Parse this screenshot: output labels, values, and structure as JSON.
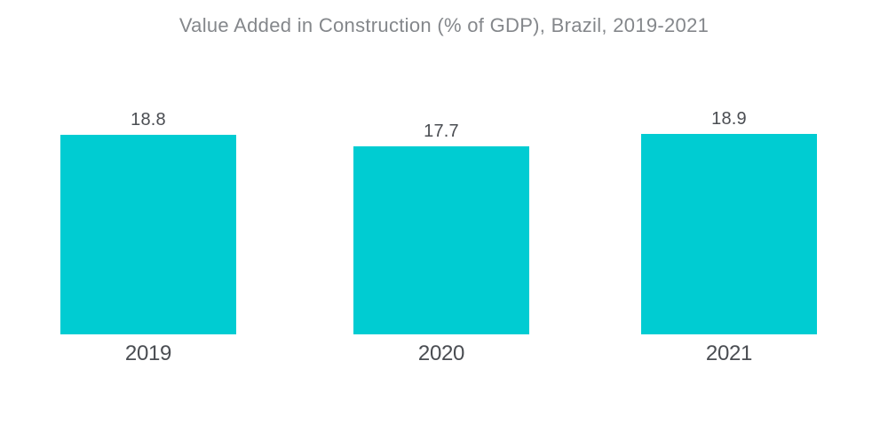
{
  "chart_data": {
    "type": "bar",
    "title": "Value Added in Construction (% of GDP), Brazil, 2019-2021",
    "categories": [
      "2019",
      "2020",
      "2021"
    ],
    "values": [
      18.8,
      17.7,
      18.9
    ],
    "value_labels": [
      "18.8",
      "17.7",
      "18.9"
    ],
    "xlabel": "",
    "ylabel": "",
    "ylim": [
      0,
      19
    ],
    "grid": false,
    "legend": false,
    "axes_visible": false,
    "colors": {
      "bar": "#00CCD2",
      "title_text": "#84878B",
      "label_text": "#4A4D52",
      "background": "#FFFFFF"
    }
  }
}
